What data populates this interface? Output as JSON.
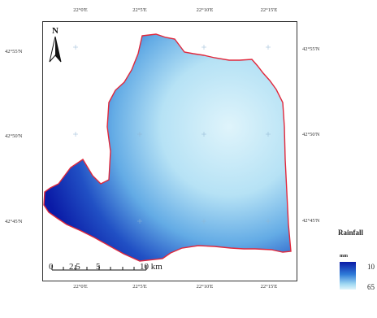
{
  "map": {
    "north_label": "N",
    "longitude_ticks": [
      "22°0'E",
      "22°5'E",
      "22°10'E",
      "22°15'E"
    ],
    "latitude_ticks": [
      "42°55'N",
      "42°50'N",
      "42°45'N"
    ],
    "scale_bar": {
      "labels": [
        "0",
        "2.5",
        "5",
        "10 km"
      ]
    },
    "legend": {
      "title": "Rainfall",
      "unit": "mm",
      "max_label": "10",
      "min_label": "65",
      "colors": {
        "high": "#0a1aa6",
        "mid": "#2f7bd8",
        "low": "#dff4fb"
      }
    },
    "boundary_color": "#e0283c"
  }
}
